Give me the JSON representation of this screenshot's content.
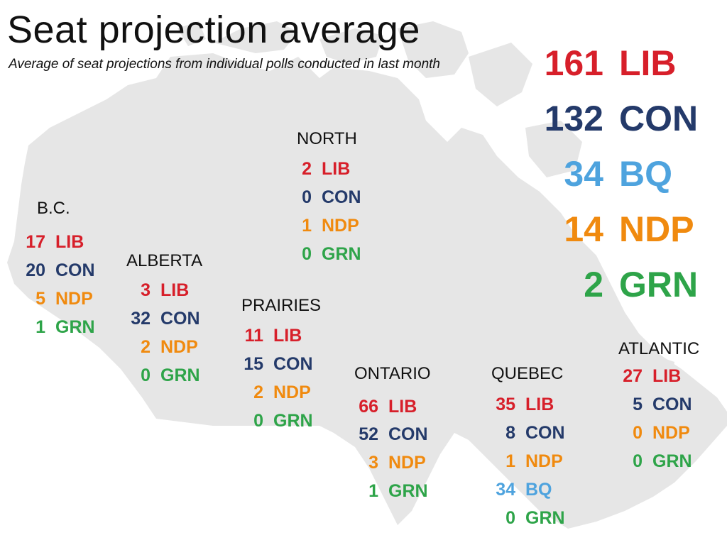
{
  "title": "Seat projection average",
  "subtitle": "Average of seat projections from individual polls conducted in last month",
  "colors": {
    "LIB": "#d71f2a",
    "CON": "#243a6a",
    "BQ": "#4ea3de",
    "NDP": "#f08a0f",
    "GRN": "#2ea449",
    "map": "#e6e6e6"
  },
  "totals": [
    {
      "seats": "161",
      "party": "LIB"
    },
    {
      "seats": "132",
      "party": "CON"
    },
    {
      "seats": "34",
      "party": "BQ"
    },
    {
      "seats": "14",
      "party": "NDP"
    },
    {
      "seats": "2",
      "party": "GRN"
    }
  ],
  "regions": [
    {
      "name": "NORTH",
      "rows": [
        {
          "seats": "2",
          "party": "LIB"
        },
        {
          "seats": "0",
          "party": "CON"
        },
        {
          "seats": "1",
          "party": "NDP"
        },
        {
          "seats": "0",
          "party": "GRN"
        }
      ]
    },
    {
      "name": "B.C.",
      "rows": [
        {
          "seats": "17",
          "party": "LIB"
        },
        {
          "seats": "20",
          "party": "CON"
        },
        {
          "seats": "5",
          "party": "NDP"
        },
        {
          "seats": "1",
          "party": "GRN"
        }
      ]
    },
    {
      "name": "ALBERTA",
      "rows": [
        {
          "seats": "3",
          "party": "LIB"
        },
        {
          "seats": "32",
          "party": "CON"
        },
        {
          "seats": "2",
          "party": "NDP"
        },
        {
          "seats": "0",
          "party": "GRN"
        }
      ]
    },
    {
      "name": "PRAIRIES",
      "rows": [
        {
          "seats": "11",
          "party": "LIB"
        },
        {
          "seats": "15",
          "party": "CON"
        },
        {
          "seats": "2",
          "party": "NDP"
        },
        {
          "seats": "0",
          "party": "GRN"
        }
      ]
    },
    {
      "name": "ONTARIO",
      "rows": [
        {
          "seats": "66",
          "party": "LIB"
        },
        {
          "seats": "52",
          "party": "CON"
        },
        {
          "seats": "3",
          "party": "NDP"
        },
        {
          "seats": "1",
          "party": "GRN"
        }
      ]
    },
    {
      "name": "QUEBEC",
      "rows": [
        {
          "seats": "35",
          "party": "LIB"
        },
        {
          "seats": "8",
          "party": "CON"
        },
        {
          "seats": "1",
          "party": "NDP"
        },
        {
          "seats": "34",
          "party": "BQ"
        },
        {
          "seats": "0",
          "party": "GRN"
        }
      ]
    },
    {
      "name": "ATLANTIC",
      "rows": [
        {
          "seats": "27",
          "party": "LIB"
        },
        {
          "seats": "5",
          "party": "CON"
        },
        {
          "seats": "0",
          "party": "NDP"
        },
        {
          "seats": "0",
          "party": "GRN"
        }
      ]
    }
  ]
}
